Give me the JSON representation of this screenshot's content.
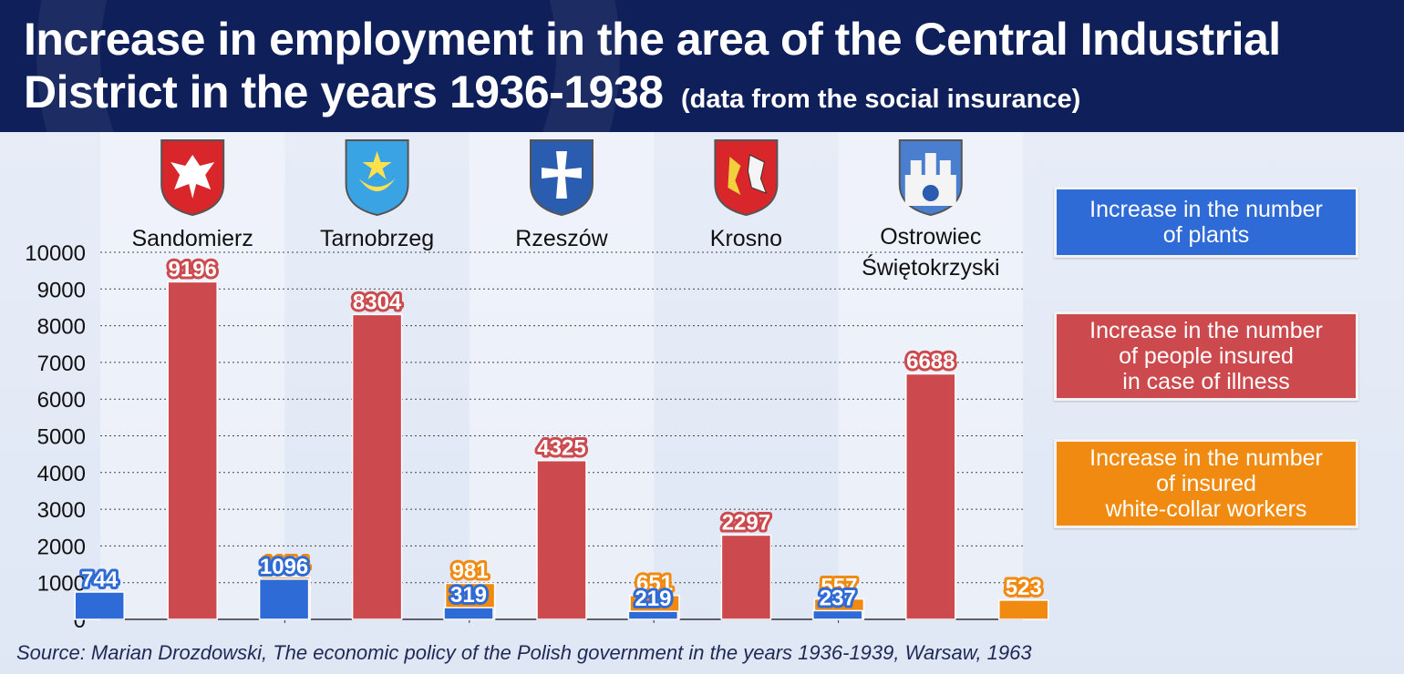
{
  "header": {
    "title_main": "Increase in employment in the area of the Central Industrial District in the years 1936-1938",
    "title_sub": "(data from the social insurance)"
  },
  "source": "Source: Marian Drozdowski, The economic policy of the Polish government in the years 1936-1939, Warsaw, 1963",
  "legend": [
    "Increase in the number\nof plants",
    "Increase in the number\nof people insured\nin case of illness",
    "Increase in the number\nof insured\nwhite-collar workers"
  ],
  "crests": [
    {
      "icon": "white-eagle-crest-icon",
      "bg": "#d8262b"
    },
    {
      "icon": "star-crescent-crest-icon",
      "bg": "#3aa3e3"
    },
    {
      "icon": "white-cross-crest-icon",
      "bg": "#2a5db0"
    },
    {
      "icon": "eagle-bear-crest-icon",
      "bg": "#d8262b"
    },
    {
      "icon": "castle-crest-icon",
      "bg": "#4a7fd0"
    }
  ],
  "colors": {
    "plants": "#2f6bd6",
    "illness": "#cc4a4d",
    "white_collar": "#f08a10"
  },
  "chart_data": {
    "type": "bar",
    "title": "Increase in employment in the area of the Central Industrial District in the years 1936-1938",
    "categories": [
      "Sandomierz",
      "Tarnobrzeg",
      "Rzeszów",
      "Krosno",
      "Ostrowiec\nŚwiętokrzyski"
    ],
    "series": [
      {
        "name": "Increase in the number of plants",
        "values": [
          744,
          1096,
          319,
          219,
          237
        ]
      },
      {
        "name": "Increase in the number of people insured in case of illness",
        "values": [
          9196,
          8304,
          4325,
          2297,
          6688
        ]
      },
      {
        "name": "Increase in the number of insured white-collar workers",
        "values": [
          1154,
          981,
          651,
          557,
          523
        ]
      }
    ],
    "yticks": [
      0,
      1000,
      2000,
      3000,
      4000,
      5000,
      6000,
      7000,
      8000,
      9000,
      10000
    ],
    "ylim": [
      0,
      10000
    ],
    "xlabel": "",
    "ylabel": "",
    "grid": true,
    "legend_position": "right"
  }
}
